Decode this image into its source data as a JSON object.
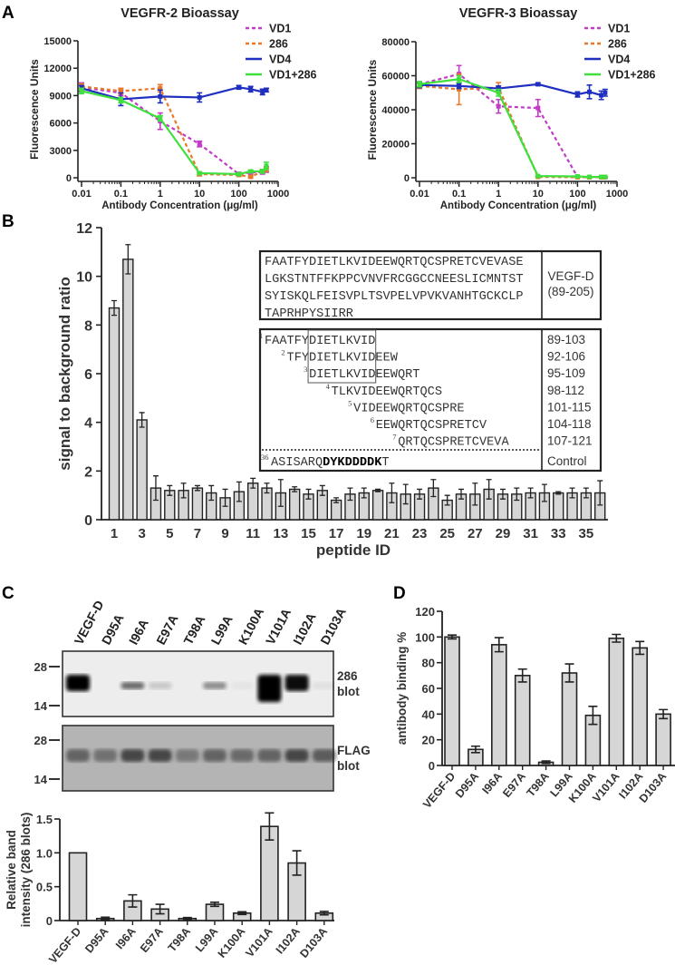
{
  "panel_labels": {
    "a": "A",
    "b": "B",
    "c": "C",
    "d": "D"
  },
  "series_colors": {
    "VD1": "#c23cc8",
    "286": "#e8782a",
    "VD4": "#1f2fbf",
    "VD1+286": "#3ee03e"
  },
  "chart_data": [
    {
      "id": "vegfr2",
      "type": "line",
      "title": "VEGFR-2 Bioassay",
      "xlabel": "Antibody Concentration (μg/ml)",
      "ylabel": "Fluorescence Units",
      "xscale": "log",
      "xlim": [
        0.01,
        1000
      ],
      "ylim": [
        0,
        15000
      ],
      "xticks": [
        "0.01",
        "0.1",
        "1",
        "10",
        "100",
        "1000"
      ],
      "yticks": [
        "0",
        "3000",
        "6000",
        "9000",
        "12000",
        "15000"
      ],
      "legend": "top-right",
      "x": [
        0.01,
        0.1,
        1,
        10,
        100,
        200,
        400,
        500
      ],
      "series": [
        {
          "name": "VD1",
          "style": "dashed",
          "values": [
            9900,
            9300,
            6200,
            3700,
            400,
            600,
            600,
            900
          ],
          "errors": [
            500,
            300,
            900,
            300,
            200,
            200,
            200,
            300
          ]
        },
        {
          "name": "286",
          "style": "dashed",
          "values": [
            10000,
            9500,
            9800,
            400,
            300,
            100,
            700,
            900
          ],
          "errors": [
            300,
            300,
            400,
            200,
            100,
            100,
            200,
            200
          ]
        },
        {
          "name": "VD4",
          "style": "solid",
          "values": [
            9800,
            8600,
            8900,
            8800,
            9900,
            9700,
            9400,
            9600
          ],
          "errors": [
            300,
            700,
            700,
            500,
            200,
            300,
            300,
            200
          ]
        },
        {
          "name": "VD1+286",
          "style": "solid",
          "values": [
            9500,
            8500,
            6500,
            500,
            400,
            700,
            700,
            1300
          ],
          "errors": [
            300,
            300,
            300,
            100,
            100,
            100,
            200,
            400
          ]
        }
      ]
    },
    {
      "id": "vegfr3",
      "type": "line",
      "title": "VEGFR-3 Bioassay",
      "xlabel": "Antibody Concentration (μg/ml)",
      "ylabel": "Fluorescence Units",
      "xscale": "log",
      "xlim": [
        0.01,
        1000
      ],
      "ylim": [
        0,
        80000
      ],
      "xticks": [
        "0.01",
        "0.1",
        "1",
        "10",
        "100",
        "1000"
      ],
      "yticks": [
        "0",
        "20000",
        "40000",
        "60000",
        "80000"
      ],
      "legend": "top-right",
      "x": [
        0.01,
        0.1,
        1,
        10,
        100,
        200,
        400,
        500
      ],
      "series": [
        {
          "name": "VD1",
          "style": "dashed",
          "values": [
            55000,
            61000,
            42000,
            41000,
            500,
            300,
            300,
            300
          ],
          "errors": [
            1500,
            5000,
            4000,
            5000,
            300,
            200,
            200,
            200
          ]
        },
        {
          "name": "286",
          "style": "dashed",
          "values": [
            54000,
            52000,
            53000,
            500,
            300,
            300,
            300,
            300
          ],
          "errors": [
            1500,
            9000,
            3000,
            300,
            200,
            200,
            200,
            200
          ]
        },
        {
          "name": "VD4",
          "style": "solid",
          "values": [
            54500,
            54000,
            52500,
            55000,
            49000,
            50500,
            48500,
            50000
          ],
          "errors": [
            1500,
            1500,
            1500,
            800,
            1500,
            4000,
            2500,
            2000
          ]
        },
        {
          "name": "VD1+286",
          "style": "solid",
          "values": [
            55000,
            58000,
            50000,
            1000,
            800,
            500,
            500,
            500
          ],
          "errors": [
            1500,
            2000,
            2000,
            300,
            300,
            200,
            200,
            200
          ]
        }
      ]
    },
    {
      "id": "peptides",
      "type": "bar",
      "xlabel": "peptide ID",
      "ylabel": "signal to background ratio",
      "ylim": [
        0,
        12
      ],
      "yticks": [
        "0",
        "2",
        "4",
        "6",
        "8",
        "10",
        "12"
      ],
      "xticks": [
        "1",
        "3",
        "5",
        "7",
        "9",
        "11",
        "13",
        "15",
        "17",
        "19",
        "21",
        "23",
        "25",
        "27",
        "29",
        "31",
        "33",
        "35"
      ],
      "categories": [
        1,
        2,
        3,
        4,
        5,
        6,
        7,
        8,
        9,
        10,
        11,
        12,
        13,
        14,
        15,
        16,
        17,
        18,
        19,
        20,
        21,
        22,
        23,
        24,
        25,
        26,
        27,
        28,
        29,
        30,
        31,
        32,
        33,
        34,
        35,
        36
      ],
      "values": [
        8.7,
        10.7,
        4.1,
        1.3,
        1.2,
        1.2,
        1.3,
        1.1,
        0.9,
        1.15,
        1.5,
        1.3,
        1.1,
        1.25,
        1.05,
        1.2,
        0.8,
        1.05,
        1.1,
        1.2,
        1.1,
        1.05,
        1.05,
        1.3,
        0.8,
        1.05,
        1.05,
        1.25,
        1.05,
        1.05,
        1.1,
        1.1,
        1.1,
        1.1,
        1.1,
        1.1
      ],
      "errors": [
        0.3,
        0.6,
        0.3,
        0.5,
        0.2,
        0.3,
        0.1,
        0.3,
        0.35,
        0.4,
        0.2,
        0.2,
        0.55,
        0.1,
        0.2,
        0.2,
        0.1,
        0.25,
        0.2,
        0.05,
        0.4,
        0.4,
        0.2,
        0.35,
        0.2,
        0.2,
        0.45,
        0.4,
        0.2,
        0.25,
        0.2,
        0.35,
        0.05,
        0.2,
        0.2,
        0.5
      ]
    },
    {
      "id": "band-intensity",
      "type": "bar",
      "ylabel": "Relative band intensity (286 blots)",
      "ylabel_lines": [
        "Relative band",
        "intensity (286 blots)"
      ],
      "ylim": [
        0,
        1.5
      ],
      "yticks": [
        "0",
        "0.5",
        "1.0",
        "1.5"
      ],
      "categories": [
        "VEGF-D",
        "D95A",
        "I96A",
        "E97A",
        "T98A",
        "L99A",
        "K100A",
        "V101A",
        "I102A",
        "D103A"
      ],
      "values": [
        1.0,
        0.03,
        0.29,
        0.17,
        0.03,
        0.24,
        0.11,
        1.39,
        0.85,
        0.11
      ],
      "errors": [
        0,
        0.02,
        0.09,
        0.07,
        0.015,
        0.03,
        0.02,
        0.2,
        0.18,
        0.025
      ]
    },
    {
      "id": "antibody-binding",
      "type": "bar",
      "ylabel": "antibody binding %",
      "ylim": [
        0,
        120
      ],
      "yticks": [
        "0",
        "20",
        "40",
        "60",
        "80",
        "100",
        "120"
      ],
      "categories": [
        "VEGF-D",
        "D95A",
        "I96A",
        "E97A",
        "T98A",
        "L99A",
        "K100A",
        "V101A",
        "I102A",
        "D103A"
      ],
      "values": [
        100,
        12.5,
        94,
        70,
        2.5,
        72,
        39,
        99,
        91.5,
        40
      ],
      "errors": [
        1.5,
        2.5,
        5.5,
        5,
        1,
        7,
        7,
        3,
        5,
        3.5
      ]
    }
  ],
  "sequence_table": {
    "full_sequence_lines": [
      "FAATFYDIETLKVIDEEWQRTQCSPRETCVEVASE",
      "LGKSTNTFFKPPCVNVFRCGGCCNEESLICMNTST",
      "SYISKQLFEISVPLTSVPELVPVKVANHTGCKCLP",
      "TAPRHPYSIIRR"
    ],
    "full_label": [
      "VEGF-D",
      "(89-205)"
    ],
    "peptides": [
      {
        "id": "1",
        "offset": 0,
        "seq": "FAATFYDIETLKVID",
        "range": "89-103"
      },
      {
        "id": "2",
        "offset": 3,
        "seq": "TFYDIETLKVIDEEW",
        "range": "92-106"
      },
      {
        "id": "3",
        "offset": 6,
        "seq": "DIETLKVIDEEWQRT",
        "range": "95-109"
      },
      {
        "id": "4",
        "offset": 9,
        "seq": "TLKVIDEEWQRTQCS",
        "range": "98-112"
      },
      {
        "id": "5",
        "offset": 12,
        "seq": "VIDEEWQRTQCSPRE",
        "range": "101-115"
      },
      {
        "id": "6",
        "offset": 15,
        "seq": "EEWQRTQCSPRETCV",
        "range": "104-118"
      },
      {
        "id": "7",
        "offset": 18,
        "seq": "QRTQCSPRETCVEVA",
        "range": "107-121"
      }
    ],
    "control": {
      "id": "36",
      "seq_plain": "ASISARQ",
      "seq_bold": "DYKDDDDK",
      "seq_tail": "T",
      "label": "Control"
    }
  },
  "blot": {
    "lanes": [
      "VEGF-D",
      "D95A",
      "I96A",
      "E97A",
      "T98A",
      "L99A",
      "K100A",
      "V101A",
      "I102A",
      "D103A"
    ],
    "markers": [
      "28",
      "14"
    ],
    "blot1_label": [
      "286",
      "blot"
    ],
    "blot2_label": [
      "FLAG",
      "blot"
    ],
    "blot1_band_intensity": [
      1.0,
      0.0,
      0.55,
      0.15,
      0.0,
      0.4,
      0.03,
      1.0,
      0.95,
      0.05
    ],
    "blot2_band_intensity": [
      0.55,
      0.45,
      0.75,
      0.75,
      0.4,
      0.55,
      0.5,
      0.55,
      0.75,
      0.6
    ]
  }
}
